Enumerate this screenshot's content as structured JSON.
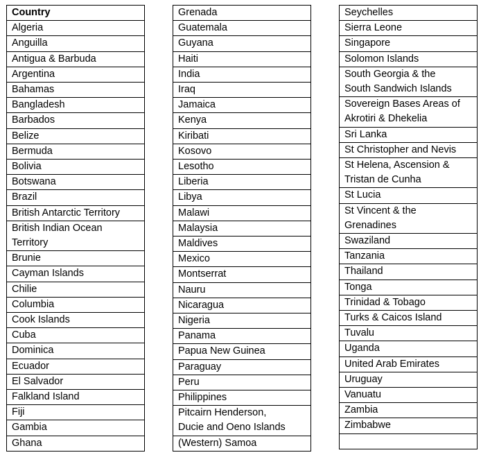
{
  "page": {
    "background_color": "#ffffff",
    "text_color": "#000000",
    "border_color": "#000000"
  },
  "tables": [
    {
      "id": "country-table-1",
      "header": "Country",
      "rows": [
        "Algeria",
        "Anguilla",
        "Antigua & Barbuda",
        "Argentina",
        "Bahamas",
        "Bangladesh",
        "Barbados",
        "Belize",
        "Bermuda",
        "Bolivia",
        "Botswana",
        "Brazil",
        "British Antarctic Territory",
        "British Indian Ocean\nTerritory",
        "Brunie",
        "Cayman Islands",
        "Chilie",
        "Columbia",
        "Cook Islands",
        "Cuba",
        "Dominica",
        "Ecuador",
        "El Salvador",
        "Falkland Island",
        "Fiji",
        "Gambia",
        "Ghana"
      ]
    },
    {
      "id": "country-table-2",
      "header": null,
      "rows": [
        "Grenada",
        "Guatemala",
        "Guyana",
        "Haiti",
        "India",
        "Iraq",
        "Jamaica",
        "Kenya",
        "Kiribati",
        "Kosovo",
        "Lesotho",
        "Liberia",
        "Libya",
        "Malawi",
        "Malaysia",
        "Maldives",
        "Mexico",
        "Montserrat",
        "Nauru",
        "Nicaragua",
        "Nigeria",
        "Panama",
        "Papua New Guinea",
        "Paraguay",
        "Peru",
        "Philippines",
        "Pitcairn Henderson,\nDucie and Oeno Islands",
        "(Western) Samoa"
      ]
    },
    {
      "id": "country-table-3",
      "header": null,
      "rows": [
        "Seychelles",
        "Sierra Leone",
        "Singapore",
        "Solomon Islands",
        "South Georgia & the\nSouth Sandwich Islands",
        "Sovereign Bases Areas of\nAkrotiri & Dhekelia",
        "Sri Lanka",
        "St Christopher and Nevis",
        "St Helena, Ascension &\nTristan de Cunha",
        "St Lucia",
        "St Vincent & the\nGrenadines",
        "Swaziland",
        "Tanzania",
        "Thailand",
        "Tonga",
        "Trinidad & Tobago",
        "Turks & Caicos Island",
        "Tuvalu",
        "Uganda",
        "United Arab Emirates",
        "Uruguay",
        "Vanuatu",
        "Zambia",
        "Zimbabwe",
        ""
      ]
    }
  ]
}
